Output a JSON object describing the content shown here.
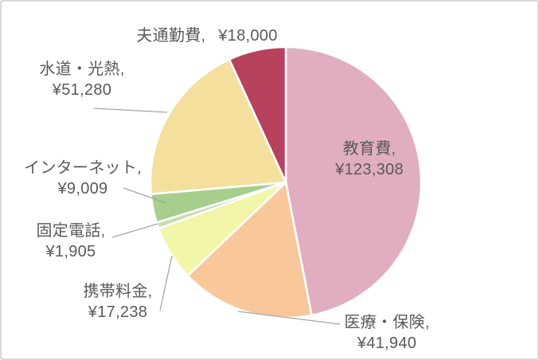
{
  "chart_data": {
    "type": "pie",
    "title": "",
    "direction": "clockwise",
    "start_angle_deg": 0,
    "label_color": "#595959",
    "leader_line_color": "#a6a6a6",
    "slice_border_color": "#ffffff",
    "background": "#ffffff",
    "frame_border_color": "#d9d9d9",
    "slices": [
      {
        "name": "教育費",
        "value": 123308,
        "label": "教育費,",
        "amount_label": "¥123,308",
        "color": "#e1adc0",
        "label_placement": "inside"
      },
      {
        "name": "医療・保険",
        "value": 41940,
        "label": "医療・保険,",
        "amount_label": "¥41,940",
        "color": "#f8c79a",
        "label_placement": "outside"
      },
      {
        "name": "携帯料金",
        "value": 17238,
        "label": "携帯料金,",
        "amount_label": "¥17,238",
        "color": "#f1f6a9",
        "label_placement": "outside"
      },
      {
        "name": "固定電話",
        "value": 1905,
        "label": "固定電話,",
        "amount_label": "¥1,905",
        "color": "#c2deb3",
        "label_placement": "outside"
      },
      {
        "name": "インターネット",
        "value": 9009,
        "label": "インターネット,",
        "amount_label": "¥9,009",
        "color": "#a6ce8c",
        "label_placement": "outside"
      },
      {
        "name": "水道・光熱",
        "value": 51280,
        "label": "水道・光熱,",
        "amount_label": "¥51,280",
        "color": "#f4e09c",
        "label_placement": "outside"
      },
      {
        "name": "夫通勤費",
        "value": 18000,
        "label": "夫通勤費,",
        "amount_label": "¥18,000",
        "color": "#b6425d",
        "label_placement": "outside-no-leader"
      }
    ]
  }
}
